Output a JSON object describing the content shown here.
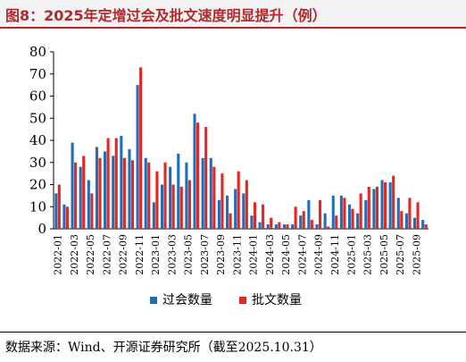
{
  "title": "图8：2025年定增过会及批文速度明显提升（例）",
  "source": "数据来源：Wind、开源证券研究所（截至2025.10.31）",
  "colors": {
    "series_a": "#1f6fb8",
    "series_b": "#e52623",
    "title": "#b4282c"
  },
  "chart_data": {
    "type": "bar",
    "ylim": [
      0,
      80
    ],
    "yticks": [
      0,
      10,
      20,
      30,
      40,
      50,
      60,
      70,
      80
    ],
    "grid": false,
    "legend_position": "bottom",
    "categories": [
      "2022-01",
      "2022-02",
      "2022-03",
      "2022-04",
      "2022-05",
      "2022-06",
      "2022-07",
      "2022-08",
      "2022-09",
      "2022-10",
      "2022-11",
      "2022-12",
      "2023-01",
      "2023-02",
      "2023-03",
      "2023-04",
      "2023-05",
      "2023-06",
      "2023-07",
      "2023-08",
      "2023-09",
      "2023-10",
      "2023-11",
      "2023-12",
      "2024-01",
      "2024-02",
      "2024-03",
      "2024-04",
      "2024-05",
      "2024-06",
      "2024-07",
      "2024-08",
      "2024-09",
      "2024-10",
      "2024-11",
      "2024-12",
      "2025-01",
      "2025-02",
      "2025-03",
      "2025-04",
      "2025-05",
      "2025-06",
      "2025-07",
      "2025-08",
      "2025-09",
      "2025-10"
    ],
    "tick_labels": [
      "2022-01",
      "2022-03",
      "2022-05",
      "2022-07",
      "2022-09",
      "2022-11",
      "2023-01",
      "2023-03",
      "2023-05",
      "2023-07",
      "2023-09",
      "2023-11",
      "2024-01",
      "2024-03",
      "2024-05",
      "2024-07",
      "2024-09",
      "2024-11",
      "2025-01",
      "2025-03",
      "2025-05",
      "2025-07",
      "2025-09"
    ],
    "series": [
      {
        "name": "过会数量",
        "values": [
          16,
          11,
          39,
          28,
          22,
          37,
          35,
          33,
          42,
          36,
          65,
          32,
          12,
          20,
          28,
          34,
          30,
          52,
          32,
          32,
          13,
          15,
          18,
          16,
          6,
          3,
          2,
          2,
          2,
          2,
          6,
          13,
          2,
          7,
          15,
          15,
          11,
          7,
          13,
          18,
          22,
          21,
          14,
          7,
          5,
          4
        ]
      },
      {
        "name": "批文数量",
        "values": [
          20,
          10,
          30,
          33,
          16,
          32,
          41,
          41,
          32,
          31,
          73,
          30,
          26,
          30,
          20,
          19,
          22,
          48,
          46,
          28,
          25,
          7,
          26,
          22,
          12,
          11,
          5,
          3,
          2,
          10,
          8,
          4,
          13,
          1,
          6,
          14,
          9,
          16,
          19,
          19,
          21,
          24,
          8,
          14,
          12,
          2
        ]
      }
    ]
  }
}
